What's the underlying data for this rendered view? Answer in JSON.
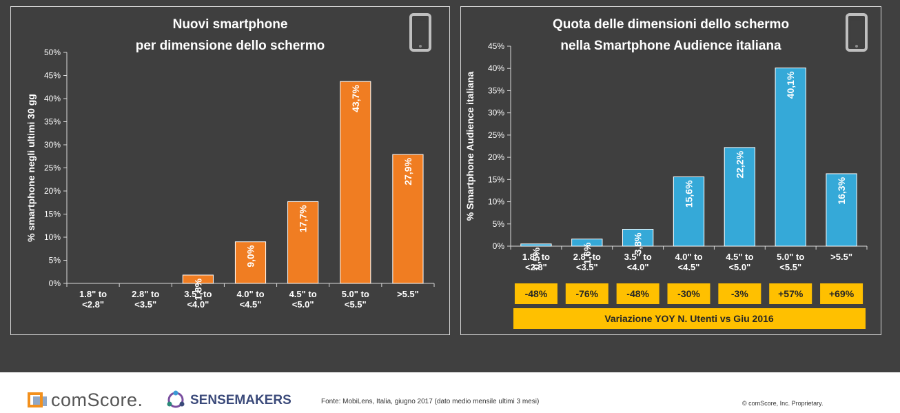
{
  "chart_data": [
    {
      "type": "bar",
      "title": "Nuovi smartphone per dimensione dello schermo",
      "title_lines": [
        "Nuovi smartphone",
        "per dimensione dello schermo"
      ],
      "ylabel": "% smartphone negli ultimi 30 gg",
      "xlabel": "",
      "categories": [
        [
          "1.8\" to",
          "<2.8\""
        ],
        [
          "2.8\" to",
          "<3.5\""
        ],
        [
          "3.5\" to",
          "<4.0\""
        ],
        [
          "4.0\" to",
          "<4.5\""
        ],
        [
          "4.5\" to",
          "<5.0\""
        ],
        [
          "5.0\" to",
          "<5.5\""
        ],
        [
          ">5.5\""
        ]
      ],
      "values": [
        0,
        0,
        1.8,
        9.0,
        17.7,
        43.7,
        27.9
      ],
      "data_labels": [
        "",
        "",
        "1,8%",
        "9,0%",
        "17,7%",
        "43,7%",
        "27,9%"
      ],
      "ylim": [
        0,
        50
      ],
      "yticks": [
        "0%",
        "5%",
        "10%",
        "15%",
        "20%",
        "25%",
        "30%",
        "35%",
        "40%",
        "45%",
        "50%"
      ],
      "color": "#f07d22",
      "grid": false
    },
    {
      "type": "bar",
      "title": "Quota delle dimensioni dello schermo nella Smartphone Audience italiana",
      "title_lines": [
        "Quota delle dimensioni dello schermo",
        "nella Smartphone Audience italiana"
      ],
      "ylabel": "% Smartphone Audience italiana",
      "xlabel": "",
      "categories": [
        [
          "1.8\" to",
          "<2.8\""
        ],
        [
          "2.8\" to",
          "<3.5\""
        ],
        [
          "3.5\" to",
          "<4.0\""
        ],
        [
          "4.0\" to",
          "<4.5\""
        ],
        [
          "4.5\" to",
          "<5.0\""
        ],
        [
          "5.0\" to",
          "<5.5\""
        ],
        [
          ">5.5\""
        ]
      ],
      "values": [
        0.5,
        1.6,
        3.8,
        15.6,
        22.2,
        40.1,
        16.3
      ],
      "data_labels": [
        "0,5%",
        "1,6%",
        "3,8%",
        "15,6%",
        "22,2%",
        "40,1%",
        "16,3%"
      ],
      "ylim": [
        0,
        45
      ],
      "yticks": [
        "0%",
        "5%",
        "10%",
        "15%",
        "20%",
        "25%",
        "30%",
        "35%",
        "40%",
        "45%"
      ],
      "color": "#35a9d8",
      "grid": false,
      "yoy_changes": [
        "-48%",
        "-76%",
        "-48%",
        "-30%",
        "-3%",
        "+57%",
        "+69%"
      ],
      "yoy_label": "Variazione YOY N. Utenti vs Giu 2016",
      "yoy_color": "#ffc000"
    }
  ],
  "footer": {
    "comscore": "comScore.",
    "sensemakers": "SENSEMAKERS",
    "source": "Fonte: MobiLens, Italia,  giugno 2017 (dato medio  mensile ultimi 3 mesi)",
    "copyright": "© comScore, Inc. Proprietary."
  },
  "icons": [
    "smartphone-icon",
    "comscore-logo",
    "sensemakers-logo"
  ]
}
